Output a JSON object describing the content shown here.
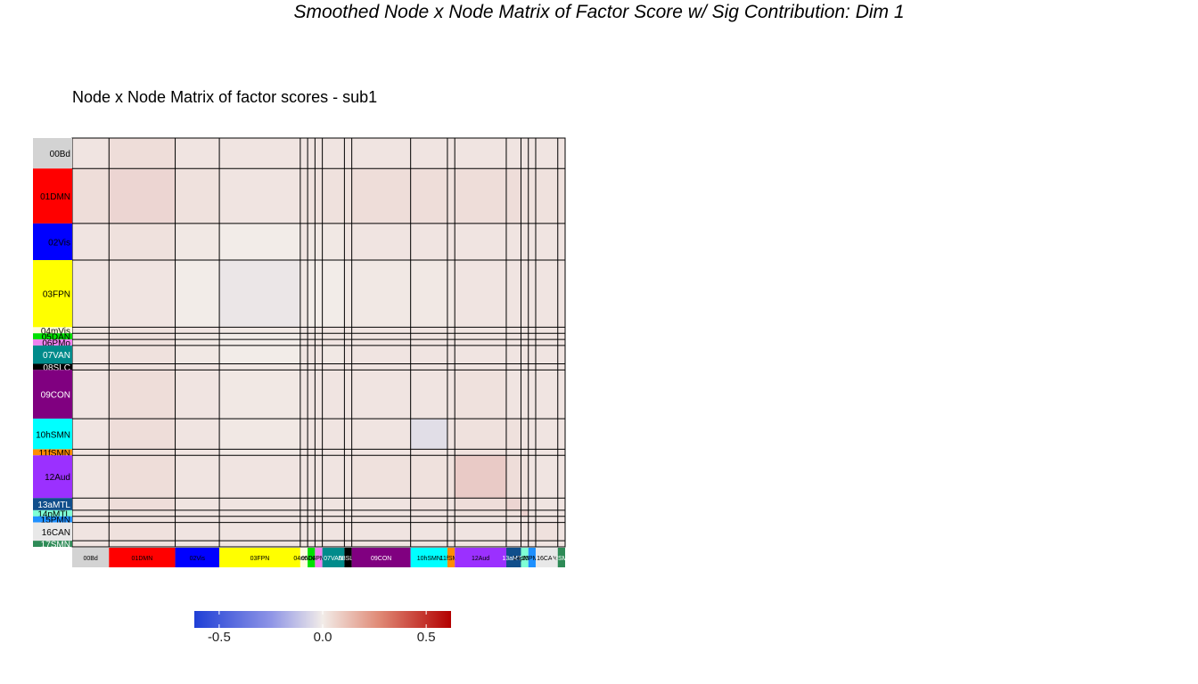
{
  "title": "Smoothed Node x Node Matrix of Factor Score w/ Sig Contribution: Dim 1",
  "subtitle": "Node x Node Matrix of factor scores - sub1",
  "chart_data": {
    "type": "heatmap",
    "networks": [
      {
        "label": "00Bd",
        "size": 5,
        "color": "#d3d3d3",
        "text": "#000000"
      },
      {
        "label": "01DMN",
        "size": 9,
        "color": "#ff0000",
        "text": "#000000"
      },
      {
        "label": "02Vis",
        "size": 6,
        "color": "#0000ff",
        "text": "#000000"
      },
      {
        "label": "03FPN",
        "size": 11,
        "color": "#ffff00",
        "text": "#000000"
      },
      {
        "label": "04mVis",
        "size": 1,
        "color": "#fffde0",
        "text": "#000000"
      },
      {
        "label": "05DAN",
        "size": 1,
        "color": "#00e000",
        "text": "#000000"
      },
      {
        "label": "06PMo",
        "size": 1,
        "color": "#ee82ee",
        "text": "#000000"
      },
      {
        "label": "07VAN",
        "size": 3,
        "color": "#008b8b",
        "text": "#ffffff"
      },
      {
        "label": "08SLC",
        "size": 1,
        "color": "#000000",
        "text": "#ffffff"
      },
      {
        "label": "09CON",
        "size": 8,
        "color": "#800080",
        "text": "#ffffff"
      },
      {
        "label": "10hSMN",
        "size": 5,
        "color": "#00ffff",
        "text": "#000000"
      },
      {
        "label": "11fSMN",
        "size": 1,
        "color": "#ff8c00",
        "text": "#000000"
      },
      {
        "label": "12Aud",
        "size": 7,
        "color": "#9b30ff",
        "text": "#000000"
      },
      {
        "label": "13aMTL",
        "size": 2,
        "color": "#104e8b",
        "text": "#ffffff"
      },
      {
        "label": "14pMTL",
        "size": 1,
        "color": "#7fffd4",
        "text": "#000000"
      },
      {
        "label": "15PMN",
        "size": 1,
        "color": "#1e90ff",
        "text": "#000000"
      },
      {
        "label": "16CAN",
        "size": 3,
        "color": "#e8e8e8",
        "text": "#000000"
      },
      {
        "label": "17SMN",
        "size": 1,
        "color": "#2e8b57",
        "text": "#ffffff"
      }
    ],
    "x_tick_labels": [
      "00Bd",
      "01DMN",
      "02Vis",
      "03FPN",
      "04mVis",
      "05DAN",
      "06PMo",
      "07VAN",
      "08SLC",
      "09CON",
      "10hSMN",
      "11fSMN",
      "12Aud",
      "13aMTL",
      "14pMTL",
      "15PMN",
      "16CAN",
      "17SMN"
    ],
    "values": [
      [
        0.02,
        0.04,
        0.02,
        0.02,
        0.02,
        0.02,
        0.02,
        0.02,
        0.02,
        0.02,
        0.02,
        0.02,
        0.02,
        0.02,
        0.02,
        0.02,
        0.02,
        0.02
      ],
      [
        0.04,
        0.06,
        0.03,
        0.02,
        0.03,
        0.03,
        0.03,
        0.03,
        0.03,
        0.04,
        0.04,
        0.03,
        0.04,
        0.04,
        0.03,
        0.03,
        0.03,
        0.03
      ],
      [
        0.02,
        0.03,
        0.01,
        0.0,
        0.02,
        0.01,
        0.01,
        0.01,
        0.02,
        0.02,
        0.02,
        0.02,
        0.02,
        0.02,
        0.02,
        0.02,
        0.02,
        0.02
      ],
      [
        0.02,
        0.02,
        0.0,
        -0.02,
        0.01,
        0.0,
        0.0,
        0.0,
        0.01,
        0.01,
        0.01,
        0.01,
        0.02,
        0.02,
        0.02,
        0.02,
        0.02,
        0.02
      ],
      [
        0.02,
        0.03,
        0.02,
        0.01,
        0.02,
        0.02,
        0.02,
        0.02,
        0.02,
        0.02,
        0.02,
        0.02,
        0.02,
        0.02,
        0.02,
        0.02,
        0.02,
        0.02
      ],
      [
        0.02,
        0.03,
        0.01,
        0.0,
        0.02,
        0.02,
        0.02,
        0.02,
        0.02,
        0.02,
        0.02,
        0.02,
        0.02,
        0.02,
        0.02,
        0.02,
        0.02,
        0.02
      ],
      [
        0.02,
        0.03,
        0.01,
        0.0,
        0.02,
        0.02,
        0.02,
        0.02,
        0.02,
        0.02,
        0.02,
        0.02,
        0.02,
        0.02,
        0.02,
        0.02,
        0.02,
        0.02
      ],
      [
        0.02,
        0.03,
        0.01,
        0.0,
        0.02,
        0.02,
        0.02,
        0.01,
        0.02,
        0.02,
        0.02,
        0.02,
        0.02,
        0.02,
        0.02,
        0.02,
        0.02,
        0.02
      ],
      [
        0.02,
        0.03,
        0.02,
        0.01,
        0.02,
        0.02,
        0.02,
        0.02,
        0.02,
        0.02,
        0.02,
        0.02,
        0.02,
        0.02,
        0.02,
        0.02,
        0.02,
        0.02
      ],
      [
        0.02,
        0.04,
        0.02,
        0.01,
        0.02,
        0.02,
        0.02,
        0.02,
        0.02,
        0.02,
        0.02,
        0.02,
        0.03,
        0.02,
        0.02,
        0.02,
        0.02,
        0.02
      ],
      [
        0.02,
        0.04,
        0.02,
        0.01,
        0.02,
        0.02,
        0.02,
        0.02,
        0.02,
        0.02,
        -0.05,
        0.02,
        0.03,
        0.03,
        0.02,
        0.02,
        0.02,
        0.02
      ],
      [
        0.02,
        0.03,
        0.02,
        0.01,
        0.02,
        0.02,
        0.02,
        0.02,
        0.02,
        0.02,
        0.02,
        0.02,
        0.03,
        0.02,
        0.02,
        0.02,
        0.02,
        0.02
      ],
      [
        0.02,
        0.04,
        0.02,
        0.02,
        0.02,
        0.02,
        0.02,
        0.02,
        0.02,
        0.03,
        0.03,
        0.03,
        0.09,
        0.04,
        0.03,
        0.02,
        0.02,
        0.02
      ],
      [
        0.02,
        0.04,
        0.02,
        0.02,
        0.02,
        0.02,
        0.02,
        0.02,
        0.02,
        0.02,
        0.03,
        0.02,
        0.04,
        0.06,
        0.03,
        0.02,
        0.02,
        0.02
      ],
      [
        0.02,
        0.03,
        0.02,
        0.02,
        0.02,
        0.02,
        0.02,
        0.02,
        0.02,
        0.02,
        0.02,
        0.02,
        0.03,
        0.03,
        0.07,
        0.02,
        0.02,
        0.02
      ],
      [
        0.02,
        0.03,
        0.02,
        0.02,
        0.02,
        0.02,
        0.02,
        0.02,
        0.02,
        0.02,
        0.02,
        0.02,
        0.02,
        0.02,
        0.02,
        0.02,
        0.02,
        0.02
      ],
      [
        0.02,
        0.03,
        0.02,
        0.02,
        0.02,
        0.02,
        0.02,
        0.02,
        0.02,
        0.02,
        0.02,
        0.02,
        0.02,
        0.02,
        0.02,
        0.02,
        0.03,
        0.02
      ],
      [
        0.02,
        0.03,
        0.02,
        0.02,
        0.02,
        0.02,
        0.02,
        0.02,
        0.02,
        0.02,
        0.02,
        0.02,
        0.02,
        0.02,
        0.02,
        0.02,
        0.02,
        0.02
      ]
    ],
    "colorbar": {
      "range": [
        -0.62,
        0.62
      ],
      "ticks": [
        -0.5,
        0.0,
        0.5
      ],
      "tick_labels": [
        "-0.5",
        "0.0",
        "0.5"
      ],
      "low_color": "#1f3fd6",
      "mid_color": "#f2ece8",
      "high_color": "#b30000"
    }
  }
}
